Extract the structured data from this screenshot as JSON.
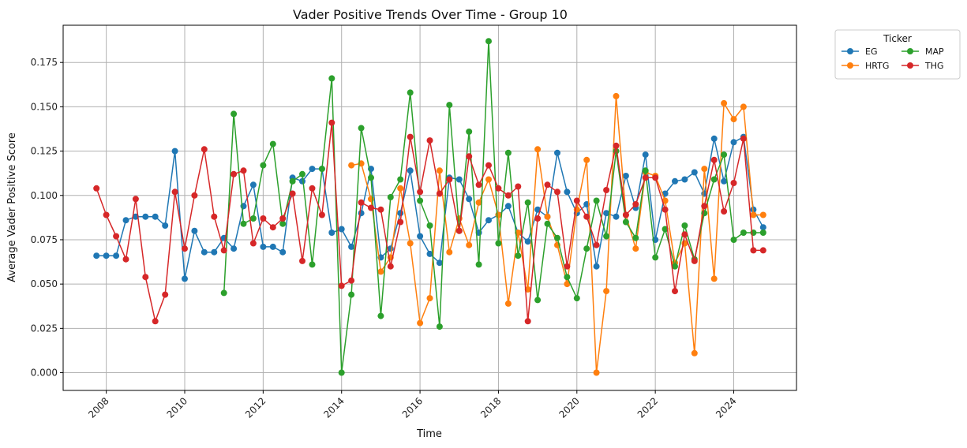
{
  "chart_data": {
    "type": "line",
    "title": "Vader Positive Trends Over Time - Group 10",
    "xlabel": "Time",
    "ylabel": "Average Vader Positive Score",
    "x_tick_labels": [
      "2008",
      "2010",
      "2012",
      "2014",
      "2016",
      "2018",
      "2020",
      "2022",
      "2024"
    ],
    "y_tick_labels": [
      "0.000",
      "0.025",
      "0.050",
      "0.075",
      "0.100",
      "0.125",
      "0.150",
      "0.175"
    ],
    "xlim": [
      2006.9,
      2025.6
    ],
    "ylim": [
      -0.01,
      0.196
    ],
    "grid": true,
    "legend": {
      "title": "Ticker",
      "placement": "outside-top-right",
      "columns": 2
    },
    "series": [
      {
        "name": "EG",
        "color": "#1f77b4",
        "x": [
          2007.75,
          2008.0,
          2008.25,
          2008.5,
          2008.75,
          2009.0,
          2009.25,
          2009.5,
          2009.75,
          2010.0,
          2010.25,
          2010.5,
          2010.75,
          2011.0,
          2011.25,
          2011.5,
          2011.75,
          2012.0,
          2012.25,
          2012.5,
          2012.75,
          2013.0,
          2013.25,
          2013.5,
          2013.75,
          2014.0,
          2014.25,
          2014.5,
          2014.75,
          2015.0,
          2015.25,
          2015.5,
          2015.75,
          2016.0,
          2016.25,
          2016.5,
          2016.75,
          2017.0,
          2017.25,
          2017.5,
          2017.75,
          2018.0,
          2018.25,
          2018.5,
          2018.75,
          2019.0,
          2019.25,
          2019.5,
          2019.75,
          2020.0,
          2020.25,
          2020.5,
          2020.75,
          2021.0,
          2021.25,
          2021.5,
          2021.75,
          2022.0,
          2022.25,
          2022.5,
          2022.75,
          2023.0,
          2023.25,
          2023.5,
          2023.75,
          2024.0,
          2024.25,
          2024.5,
          2024.75
        ],
        "values": [
          0.066,
          0.066,
          0.066,
          0.086,
          0.088,
          0.088,
          0.088,
          0.083,
          0.125,
          0.053,
          0.08,
          0.068,
          0.068,
          0.076,
          0.07,
          0.094,
          0.106,
          0.071,
          0.071,
          0.068,
          0.11,
          0.108,
          0.115,
          0.115,
          0.079,
          0.081,
          0.071,
          0.09,
          0.115,
          0.065,
          0.07,
          0.09,
          0.114,
          0.077,
          0.067,
          0.062,
          0.11,
          0.109,
          0.098,
          0.079,
          0.086,
          0.089,
          0.094,
          0.079,
          0.074,
          0.092,
          0.088,
          0.124,
          0.102,
          0.09,
          0.095,
          0.06,
          0.09,
          0.088,
          0.111,
          0.093,
          0.123,
          0.075,
          0.101,
          0.108,
          0.109,
          0.113,
          0.101,
          0.132,
          0.108,
          0.13,
          0.133,
          0.092,
          0.082
        ]
      },
      {
        "name": "HRTG",
        "color": "#ff7f0e",
        "x": [
          2014.25,
          2014.5,
          2014.75,
          2015.0,
          2015.25,
          2015.5,
          2015.75,
          2016.0,
          2016.25,
          2016.5,
          2016.75,
          2017.0,
          2017.25,
          2017.5,
          2017.75,
          2018.0,
          2018.25,
          2018.5,
          2018.75,
          2019.0,
          2019.25,
          2019.5,
          2019.75,
          2020.0,
          2020.25,
          2020.5,
          2020.75,
          2021.0,
          2021.25,
          2021.5,
          2021.75,
          2022.0,
          2022.25,
          2022.5,
          2022.75,
          2023.0,
          2023.25,
          2023.5,
          2023.75,
          2024.0,
          2024.25,
          2024.5,
          2024.75
        ],
        "values": [
          0.117,
          0.118,
          0.098,
          0.057,
          0.065,
          0.104,
          0.073,
          0.028,
          0.042,
          0.114,
          0.068,
          0.087,
          0.072,
          0.096,
          0.109,
          0.089,
          0.039,
          0.079,
          0.047,
          0.126,
          0.088,
          0.072,
          0.05,
          0.092,
          0.12,
          0.0,
          0.046,
          0.156,
          0.089,
          0.07,
          0.113,
          0.111,
          0.097,
          0.062,
          0.073,
          0.011,
          0.115,
          0.053,
          0.152,
          0.143,
          0.15,
          0.089,
          0.089
        ]
      },
      {
        "name": "MAP",
        "color": "#2ca02c",
        "x": [
          2011.0,
          2011.25,
          2011.5,
          2011.75,
          2012.0,
          2012.25,
          2012.5,
          2012.75,
          2013.0,
          2013.25,
          2013.5,
          2013.75,
          2014.0,
          2014.25,
          2014.5,
          2014.75,
          2015.0,
          2015.25,
          2015.5,
          2015.75,
          2016.0,
          2016.25,
          2016.5,
          2016.75,
          2017.0,
          2017.25,
          2017.5,
          2017.75,
          2018.0,
          2018.25,
          2018.5,
          2018.75,
          2019.0,
          2019.25,
          2019.5,
          2019.75,
          2020.0,
          2020.25,
          2020.5,
          2020.75,
          2021.0,
          2021.25,
          2021.5,
          2021.75,
          2022.0,
          2022.25,
          2022.5,
          2022.75,
          2023.0,
          2023.25,
          2023.5,
          2023.75,
          2024.0,
          2024.25,
          2024.5,
          2024.75
        ],
        "values": [
          0.045,
          0.146,
          0.084,
          0.087,
          0.117,
          0.129,
          0.084,
          0.108,
          0.112,
          0.061,
          0.115,
          0.166,
          0.0,
          0.044,
          0.138,
          0.11,
          0.032,
          0.099,
          0.109,
          0.158,
          0.097,
          0.083,
          0.026,
          0.151,
          0.08,
          0.136,
          0.061,
          0.187,
          0.073,
          0.124,
          0.066,
          0.096,
          0.041,
          0.084,
          0.076,
          0.054,
          0.042,
          0.07,
          0.097,
          0.077,
          0.125,
          0.085,
          0.076,
          0.114,
          0.065,
          0.081,
          0.06,
          0.083,
          0.064,
          0.09,
          0.109,
          0.123,
          0.075,
          0.079,
          0.079,
          0.079
        ]
      },
      {
        "name": "THG",
        "color": "#d62728",
        "x": [
          2007.75,
          2008.0,
          2008.25,
          2008.5,
          2008.75,
          2009.0,
          2009.25,
          2009.5,
          2009.75,
          2010.0,
          2010.25,
          2010.5,
          2010.75,
          2011.0,
          2011.25,
          2011.5,
          2011.75,
          2012.0,
          2012.25,
          2012.5,
          2012.75,
          2013.0,
          2013.25,
          2013.5,
          2013.75,
          2014.0,
          2014.25,
          2014.5,
          2014.75,
          2015.0,
          2015.25,
          2015.5,
          2015.75,
          2016.0,
          2016.25,
          2016.5,
          2016.75,
          2017.0,
          2017.25,
          2017.5,
          2017.75,
          2018.0,
          2018.25,
          2018.5,
          2018.75,
          2019.0,
          2019.25,
          2019.5,
          2019.75,
          2020.0,
          2020.25,
          2020.5,
          2020.75,
          2021.0,
          2021.25,
          2021.5,
          2021.75,
          2022.0,
          2022.25,
          2022.5,
          2022.75,
          2023.0,
          2023.25,
          2023.5,
          2023.75,
          2024.0,
          2024.25,
          2024.5,
          2024.75
        ],
        "values": [
          0.104,
          0.089,
          0.077,
          0.064,
          0.098,
          0.054,
          0.029,
          0.044,
          0.102,
          0.07,
          0.1,
          0.126,
          0.088,
          0.069,
          0.112,
          0.114,
          0.073,
          0.087,
          0.082,
          0.087,
          0.101,
          0.063,
          0.104,
          0.089,
          0.141,
          0.049,
          0.052,
          0.096,
          0.093,
          0.092,
          0.06,
          0.085,
          0.133,
          0.102,
          0.131,
          0.101,
          0.109,
          0.08,
          0.122,
          0.106,
          0.117,
          0.104,
          0.1,
          0.105,
          0.029,
          0.087,
          0.106,
          0.102,
          0.06,
          0.097,
          0.088,
          0.072,
          0.103,
          0.128,
          0.089,
          0.095,
          0.11,
          0.11,
          0.092,
          0.046,
          0.078,
          0.063,
          0.094,
          0.12,
          0.091,
          0.107,
          0.132,
          0.069,
          0.069
        ]
      }
    ]
  }
}
